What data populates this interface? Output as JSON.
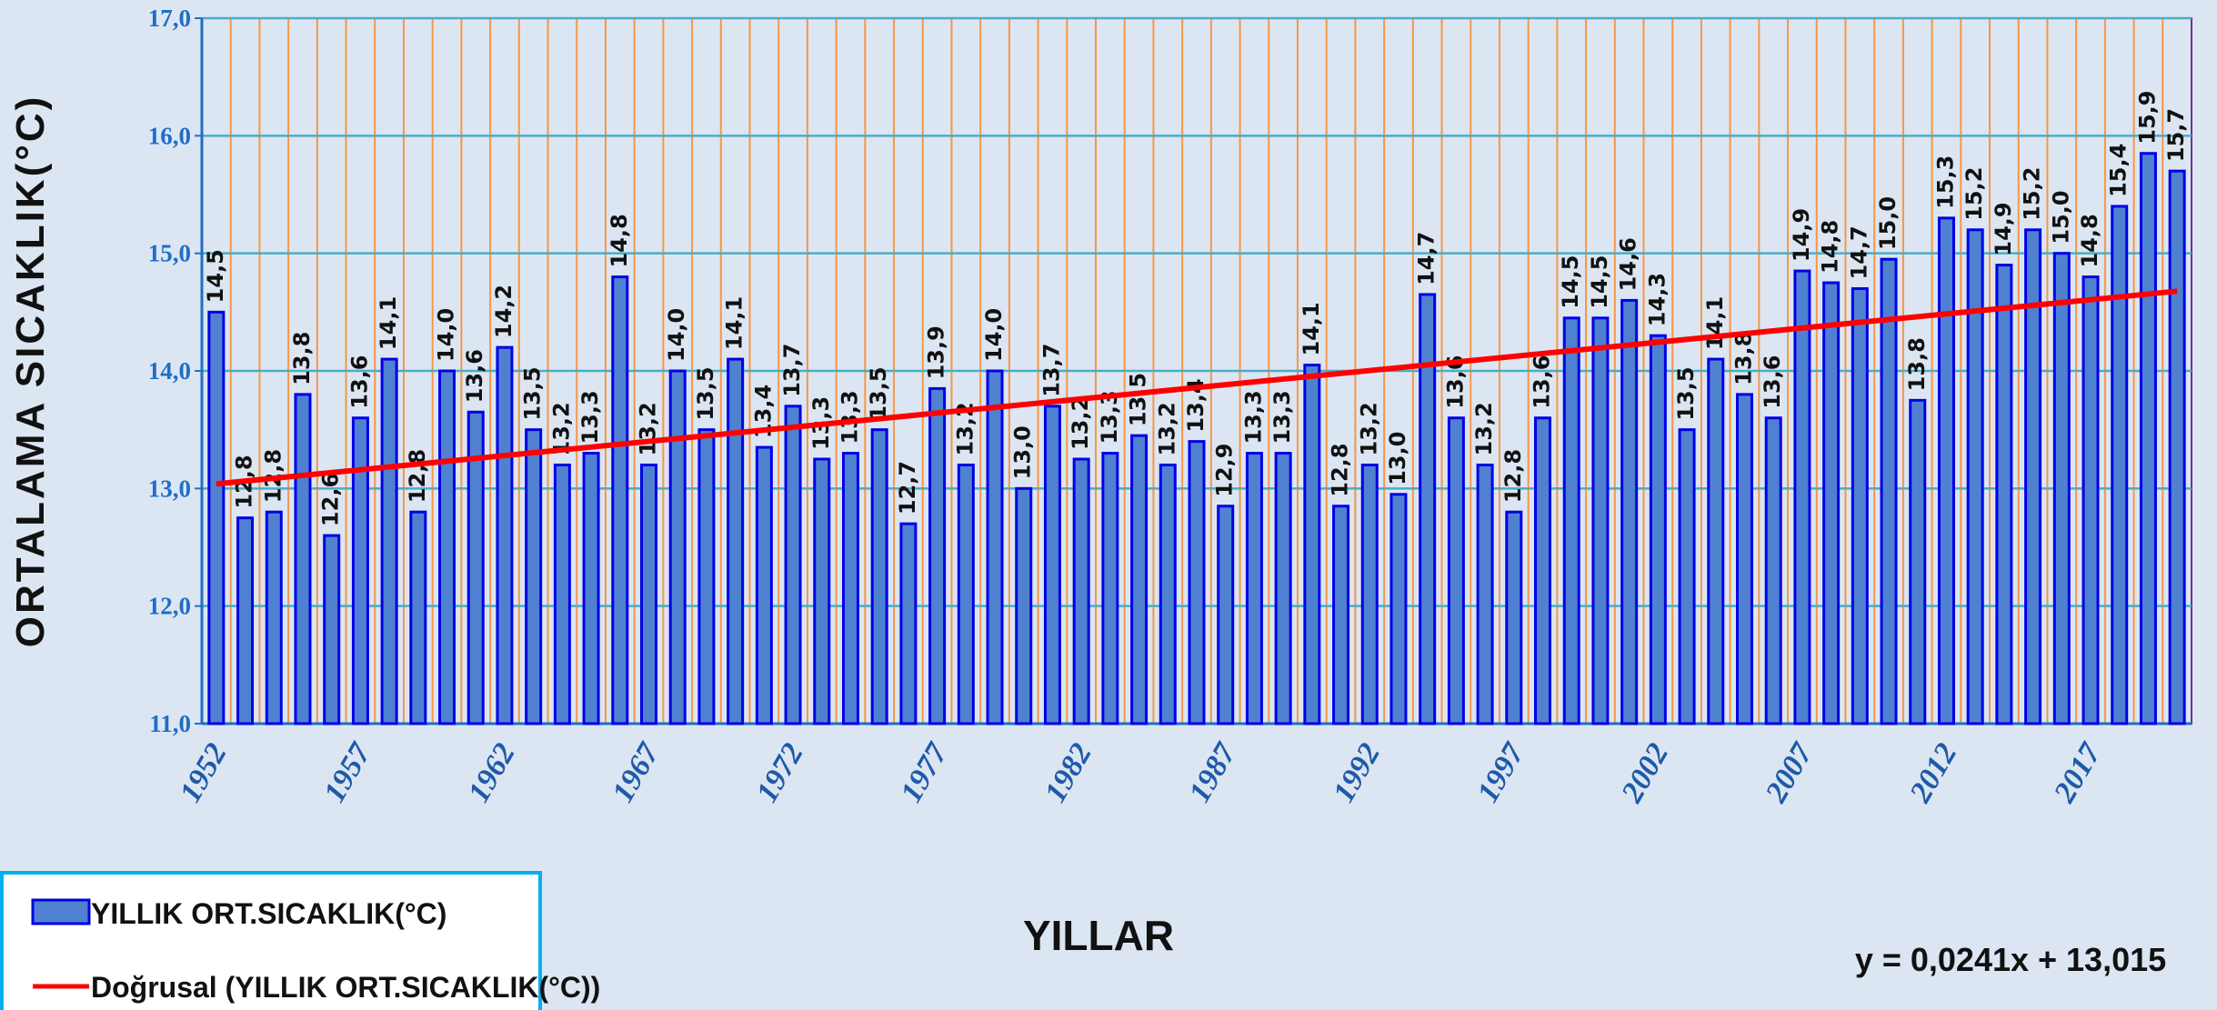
{
  "chart_data": {
    "type": "bar",
    "y_axis_label": "ORTALAMA SICAKLIK(°C)",
    "x_axis_label": "YILLAR",
    "categories": [
      "1952",
      null,
      null,
      null,
      null,
      "1957",
      null,
      null,
      null,
      null,
      "1962",
      null,
      null,
      null,
      null,
      "1967",
      null,
      null,
      null,
      null,
      "1972",
      null,
      null,
      null,
      null,
      "1977",
      null,
      null,
      null,
      null,
      "1982",
      null,
      null,
      null,
      null,
      "1987",
      null,
      null,
      null,
      null,
      "1992",
      null,
      null,
      null,
      null,
      "1997",
      null,
      null,
      null,
      null,
      "2002",
      null,
      null,
      null,
      null,
      "2007",
      null,
      null,
      null,
      null,
      "2012",
      null,
      null,
      null,
      null,
      "2017",
      null,
      null,
      null
    ],
    "series": [
      {
        "name": "YILLIK ORT.SICAKLIK(°C)",
        "color": "#4f81d0",
        "edge_color": "#0000e6",
        "values": [
          14.5,
          12.75,
          12.8,
          13.8,
          12.6,
          13.6,
          14.1,
          12.8,
          14.0,
          13.65,
          14.2,
          13.5,
          13.2,
          13.3,
          14.8,
          13.2,
          14.0,
          13.5,
          14.1,
          13.35,
          13.7,
          13.25,
          13.3,
          13.5,
          12.7,
          13.85,
          13.2,
          14.0,
          13.0,
          13.7,
          13.25,
          13.3,
          13.45,
          13.2,
          13.4,
          12.85,
          13.3,
          13.3,
          14.05,
          12.85,
          13.2,
          12.95,
          14.65,
          13.6,
          13.2,
          12.8,
          13.6,
          14.45,
          14.45,
          14.6,
          14.3,
          13.5,
          14.1,
          13.8,
          13.6,
          14.85,
          14.75,
          14.7,
          14.95,
          13.75,
          15.3,
          15.2,
          14.9,
          15.2,
          15.0,
          14.8,
          15.4,
          15.85,
          15.7
        ],
        "value_labels": [
          "14,5",
          "12,8",
          "12,8",
          "13,8",
          "12,6",
          "13,6",
          "14,1",
          "12,8",
          "14,0",
          "13,6",
          "14,2",
          "13,5",
          "13,2",
          "13,3",
          "14,8",
          "13,2",
          "14,0",
          "13,5",
          "14,1",
          "13,4",
          "13,7",
          "13,3",
          "13,3",
          "13,5",
          "12,7",
          "13,9",
          "13,2",
          "14,0",
          "13,0",
          "13,7",
          "13,2",
          "13,3",
          "13,5",
          "13,2",
          "13,4",
          "12,9",
          "13,3",
          "13,3",
          "14,1",
          "12,8",
          "13,2",
          "13,0",
          "14,7",
          "13,6",
          "13,2",
          "12,8",
          "13,6",
          "14,5",
          "14,5",
          "14,6",
          "14,3",
          "13,5",
          "14,1",
          "13,8",
          "13,6",
          "14,9",
          "14,8",
          "14,7",
          "15,0",
          "13,8",
          "15,3",
          "15,2",
          "14,9",
          "15,2",
          "15,0",
          "14,8",
          "15,4",
          "15,9",
          "15,7"
        ]
      }
    ],
    "trendline": {
      "name": "Doğrusal (YILLIK ORT.SICAKLIK(°C))",
      "color": "#ff0000",
      "slope": 0.0241,
      "intercept": 13.015,
      "equation": "y = 0,0241x + 13,015"
    },
    "ylim": [
      11,
      17
    ],
    "yticks": [
      {
        "value": 11,
        "label": "11,0"
      },
      {
        "value": 12,
        "label": "12,0"
      },
      {
        "value": 13,
        "label": "13,0"
      },
      {
        "value": 14,
        "label": "14,0"
      },
      {
        "value": 15,
        "label": "15,0"
      },
      {
        "value": 16,
        "label": "16,0"
      },
      {
        "value": 17,
        "label": "17,0"
      }
    ],
    "grid": true
  }
}
